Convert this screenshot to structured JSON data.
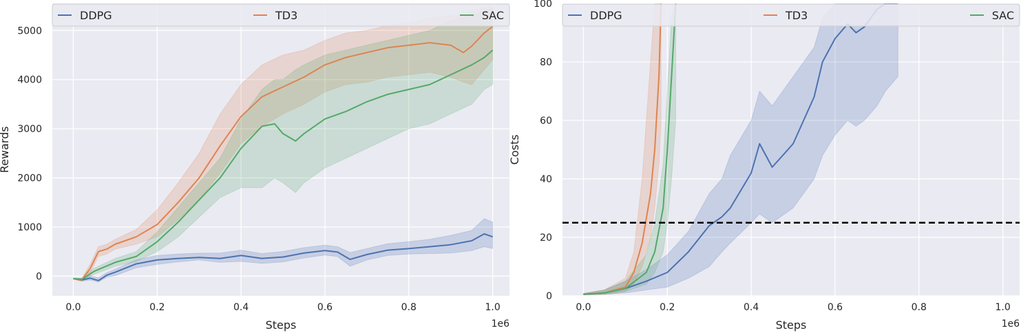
{
  "colors": {
    "DDPG": "#4c72b0",
    "TD3": "#dd8452",
    "SAC": "#55a868",
    "background": "#eaeaf2",
    "grid": "#ffffff",
    "threshold": "#000000"
  },
  "chart_data": [
    {
      "type": "line",
      "xlabel": "Steps",
      "ylabel": "Rewards",
      "x_offset_label": "1e6",
      "xlim": [
        -0.05,
        1.04
      ],
      "ylim": [
        -400,
        5550
      ],
      "xticks": [
        0.0,
        0.2,
        0.4,
        0.6,
        0.8,
        1.0
      ],
      "xtick_labels": [
        "0.0",
        "0.2",
        "0.4",
        "0.6",
        "0.8",
        "1.0"
      ],
      "yticks": [
        0,
        1000,
        2000,
        3000,
        4000,
        5000
      ],
      "ytick_labels": [
        "0",
        "1000",
        "2000",
        "3000",
        "4000",
        "5000"
      ],
      "grid": true,
      "legend": "top (horizontal)",
      "series": [
        {
          "name": "DDPG",
          "x": [
            0.0,
            0.02,
            0.04,
            0.06,
            0.08,
            0.1,
            0.15,
            0.2,
            0.25,
            0.3,
            0.35,
            0.4,
            0.45,
            0.5,
            0.55,
            0.6,
            0.63,
            0.66,
            0.7,
            0.75,
            0.8,
            0.85,
            0.9,
            0.95,
            0.98,
            1.0
          ],
          "mean": [
            -50,
            -80,
            -40,
            -90,
            20,
            80,
            250,
            330,
            360,
            380,
            360,
            420,
            360,
            390,
            470,
            520,
            490,
            340,
            440,
            530,
            560,
            600,
            640,
            720,
            860,
            800
          ],
          "lower": [
            -60,
            -100,
            -80,
            -120,
            -20,
            10,
            170,
            240,
            290,
            330,
            280,
            300,
            260,
            290,
            370,
            430,
            400,
            200,
            330,
            420,
            450,
            460,
            470,
            520,
            600,
            560
          ],
          "upper": [
            -40,
            -40,
            10,
            -30,
            70,
            140,
            330,
            420,
            450,
            470,
            470,
            530,
            460,
            500,
            580,
            630,
            600,
            480,
            560,
            660,
            700,
            750,
            830,
            930,
            1170,
            1100
          ]
        },
        {
          "name": "TD3",
          "x": [
            0.0,
            0.02,
            0.04,
            0.06,
            0.08,
            0.1,
            0.15,
            0.2,
            0.25,
            0.3,
            0.35,
            0.4,
            0.45,
            0.5,
            0.55,
            0.6,
            0.65,
            0.7,
            0.75,
            0.8,
            0.85,
            0.9,
            0.93,
            0.95,
            0.98,
            1.0
          ],
          "mean": [
            -50,
            -80,
            150,
            500,
            550,
            650,
            800,
            1050,
            1500,
            2000,
            2650,
            3250,
            3650,
            3850,
            4050,
            4300,
            4450,
            4550,
            4650,
            4700,
            4750,
            4700,
            4550,
            4680,
            4950,
            5080
          ],
          "lower": [
            -60,
            -110,
            60,
            400,
            450,
            550,
            650,
            800,
            1150,
            1550,
            2100,
            2700,
            3050,
            3300,
            3500,
            3750,
            3900,
            3950,
            4050,
            4100,
            4150,
            4050,
            3950,
            3900,
            4200,
            4400
          ],
          "upper": [
            -40,
            -50,
            240,
            600,
            650,
            750,
            950,
            1350,
            1900,
            2500,
            3300,
            3900,
            4300,
            4500,
            4600,
            4800,
            4950,
            5000,
            5100,
            5150,
            5250,
            5300,
            5300,
            5400,
            5450,
            5500
          ]
        },
        {
          "name": "SAC",
          "x": [
            0.0,
            0.02,
            0.05,
            0.1,
            0.15,
            0.2,
            0.25,
            0.3,
            0.35,
            0.4,
            0.45,
            0.48,
            0.5,
            0.53,
            0.55,
            0.6,
            0.65,
            0.7,
            0.75,
            0.8,
            0.85,
            0.9,
            0.95,
            0.98,
            1.0
          ],
          "mean": [
            -50,
            -70,
            100,
            280,
            400,
            700,
            1100,
            1550,
            2000,
            2600,
            3050,
            3100,
            2900,
            2750,
            2900,
            3200,
            3350,
            3550,
            3700,
            3800,
            3900,
            4100,
            4300,
            4450,
            4600
          ],
          "lower": [
            -60,
            -90,
            40,
            200,
            300,
            500,
            800,
            1200,
            1600,
            1800,
            1800,
            2000,
            1900,
            1700,
            1900,
            2200,
            2400,
            2600,
            2800,
            3000,
            3100,
            3300,
            3500,
            3800,
            3900
          ],
          "upper": [
            -40,
            -50,
            160,
            360,
            500,
            900,
            1400,
            1900,
            2400,
            3200,
            3800,
            4000,
            4000,
            4200,
            4300,
            4500,
            4600,
            4700,
            4800,
            4900,
            5000,
            5200,
            5300,
            5400,
            5450
          ]
        }
      ]
    },
    {
      "type": "line",
      "xlabel": "Steps",
      "ylabel": "Costs",
      "x_offset_label": "1e6",
      "xlim": [
        -0.05,
        1.04
      ],
      "ylim": [
        0,
        100
      ],
      "xticks": [
        0.0,
        0.2,
        0.4,
        0.6,
        0.8,
        1.0
      ],
      "xtick_labels": [
        "0.0",
        "0.2",
        "0.4",
        "0.6",
        "0.8",
        "1.0"
      ],
      "yticks": [
        0,
        20,
        40,
        60,
        80,
        100
      ],
      "ytick_labels": [
        "0",
        "20",
        "40",
        "60",
        "80",
        "100"
      ],
      "threshold": 25,
      "grid": true,
      "legend": "top (horizontal)",
      "series": [
        {
          "name": "DDPG",
          "x": [
            0.0,
            0.05,
            0.1,
            0.15,
            0.2,
            0.25,
            0.3,
            0.33,
            0.35,
            0.4,
            0.42,
            0.45,
            0.5,
            0.55,
            0.57,
            0.6,
            0.63,
            0.65,
            0.67,
            0.7,
            0.72,
            0.75
          ],
          "mean": [
            0.5,
            1,
            2.5,
            5,
            8,
            15,
            24,
            27,
            30,
            42,
            52,
            44,
            52,
            68,
            80,
            88,
            93,
            90,
            92,
            98,
            100,
            100
          ],
          "lower": [
            0.3,
            0.5,
            1,
            2,
            3,
            6,
            10,
            15,
            18,
            25,
            28,
            25,
            30,
            40,
            48,
            55,
            60,
            58,
            60,
            65,
            70,
            75
          ],
          "upper": [
            0.8,
            2,
            5,
            9,
            14,
            22,
            35,
            40,
            48,
            60,
            70,
            65,
            75,
            85,
            95,
            100,
            100,
            100,
            100,
            100,
            100,
            100
          ]
        },
        {
          "name": "TD3",
          "x": [
            0.0,
            0.05,
            0.1,
            0.12,
            0.14,
            0.16,
            0.17,
            0.18,
            0.185
          ],
          "mean": [
            0.5,
            1,
            3,
            8,
            18,
            35,
            50,
            75,
            100
          ],
          "lower": [
            0.3,
            0.5,
            1.5,
            4,
            10,
            20,
            30,
            45,
            60
          ],
          "upper": [
            0.8,
            2,
            6,
            15,
            40,
            80,
            100,
            100,
            100
          ]
        },
        {
          "name": "SAC",
          "x": [
            0.0,
            0.05,
            0.1,
            0.15,
            0.17,
            0.19,
            0.2,
            0.21,
            0.22
          ],
          "mean": [
            0.5,
            1,
            2.5,
            8,
            15,
            30,
            50,
            75,
            100
          ],
          "lower": [
            0.3,
            0.5,
            1.5,
            4,
            8,
            15,
            25,
            40,
            60
          ],
          "upper": [
            0.8,
            2,
            5,
            14,
            25,
            45,
            70,
            95,
            100
          ]
        }
      ]
    }
  ]
}
